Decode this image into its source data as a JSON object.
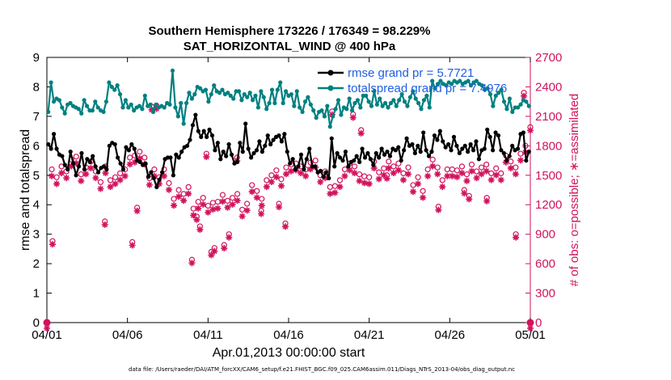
{
  "chart_data": {
    "type": "line",
    "title_line1": "Southern Hemisphere 173226 / 176349 = 98.229%",
    "title_line2": "SAT_HORIZONTAL_WIND @ 400 hPa",
    "xlabel": "Apr.01,2013 00:00:00 start",
    "ylabel_left": "rmse and totalspread",
    "ylabel_right": "# of obs: o=possible; ∗=assimilated",
    "footer": "data file: /Users/raeder/DAI/ATM_forcXX/CAM6_setup/f.e21.FHIST_BGC.f09_025.CAM6assim.011/Diags_NTrS_2013-04/obs_diag_output.nc",
    "x_range": [
      0,
      30
    ],
    "x_ticks": [
      0,
      5,
      10,
      15,
      20,
      25,
      30
    ],
    "x_tick_labels": [
      "04/01",
      "04/06",
      "04/11",
      "04/16",
      "04/21",
      "04/26",
      "05/01"
    ],
    "ylim_left": [
      0,
      9
    ],
    "y_ticks_left": [
      "0",
      "1",
      "2",
      "3",
      "4",
      "5",
      "6",
      "7",
      "8",
      "9"
    ],
    "ylim_right": [
      0,
      2700
    ],
    "y_ticks_right": [
      "0",
      "300",
      "600",
      "900",
      "1200",
      "1500",
      "1800",
      "2100",
      "2400",
      "2700"
    ],
    "legend": [
      {
        "name": "rmse grand pr = 5.7721",
        "color": "#000000"
      },
      {
        "name": "totalspread grand pr = 7.4976",
        "color": "#008080"
      }
    ],
    "colors": {
      "rmse": "#000000",
      "spread": "#008080",
      "obs": "#d1135c",
      "legend_text": "#1f5fe0"
    },
    "series": [
      {
        "name": "rmse",
        "values": [
          6.05,
          5.9,
          6.4,
          5.9,
          5.7,
          5.65,
          5.35,
          5.2,
          5.8,
          5.4,
          5.0,
          5.3,
          5.75,
          5.2,
          5.55,
          5.45,
          5.65,
          5.3,
          5.1,
          5.25,
          5.3,
          5.2,
          6.0,
          6.1,
          6.05,
          5.6,
          5.4,
          5.2,
          5.95,
          5.85,
          6.05,
          5.9,
          5.5,
          5.45,
          5.35,
          5.4,
          4.95,
          5.1,
          4.9,
          4.6,
          4.85,
          5.1,
          5.55,
          5.6,
          5.6,
          5.0,
          5.7,
          5.6,
          5.8,
          5.95,
          6.0,
          6.2,
          6.7,
          7.05,
          6.5,
          6.3,
          6.5,
          6.3,
          6.55,
          6.35,
          5.85,
          6.1,
          5.55,
          5.8,
          5.65,
          6.05,
          5.7,
          5.4,
          5.45,
          6.1,
          5.8,
          6.75,
          5.9,
          5.6,
          5.75,
          5.85,
          6.15,
          5.8,
          6.0,
          6.35,
          6.05,
          6.2,
          6.3,
          6.35,
          6.15,
          6.4,
          5.8,
          5.4,
          5.55,
          5.2,
          5.3,
          5.7,
          5.2,
          5.55,
          5.9,
          5.3,
          5.3,
          5.1,
          5.15,
          4.95,
          5.1,
          4.9,
          6.25,
          5.3,
          5.75,
          5.6,
          5.5,
          5.8,
          5.3,
          5.45,
          5.5,
          5.65,
          5.45,
          5.9,
          5.6,
          5.75,
          5.55,
          5.35,
          5.75,
          5.6,
          5.9,
          5.7,
          5.8,
          5.65,
          5.9,
          5.85,
          5.95,
          5.5,
          5.85,
          6.25,
          6.0,
          6.05,
          5.75,
          6.0,
          5.8,
          6.45,
          5.85,
          5.65,
          5.8,
          6.35,
          6.2,
          6.5,
          6.15,
          5.95,
          6.05,
          5.85,
          6.3,
          6.0,
          5.75,
          5.9,
          6.0,
          5.8,
          6.05,
          5.85,
          6.15,
          5.55,
          5.85,
          5.9,
          6.55,
          6.3,
          5.85,
          6.45,
          6.35,
          5.85,
          5.75,
          5.5,
          5.65,
          6.0,
          5.85,
          5.9,
          6.4,
          6.45,
          5.5,
          5.8
        ]
      },
      {
        "name": "totalspread",
        "values": [
          7.15,
          8.15,
          7.5,
          7.6,
          7.55,
          7.3,
          7.1,
          7.4,
          7.45,
          7.35,
          7.3,
          7.25,
          7.1,
          7.55,
          7.35,
          7.2,
          7.2,
          7.5,
          7.3,
          7.2,
          7.15,
          7.5,
          8.15,
          8.0,
          7.9,
          8.05,
          7.75,
          7.3,
          7.55,
          7.3,
          7.4,
          7.2,
          7.3,
          7.35,
          7.25,
          7.7,
          7.35,
          7.4,
          7.15,
          7.4,
          7.3,
          7.35,
          7.3,
          7.45,
          7.4,
          8.55,
          7.3,
          7.0,
          7.45,
          6.75,
          7.45,
          7.8,
          7.6,
          7.75,
          8.0,
          7.95,
          7.85,
          7.9,
          7.5,
          7.75,
          8.05,
          7.85,
          7.8,
          7.9,
          7.75,
          7.8,
          7.7,
          7.6,
          7.85,
          7.85,
          7.55,
          7.75,
          7.65,
          7.8,
          7.55,
          7.7,
          7.3,
          7.85,
          7.65,
          7.25,
          7.45,
          7.9,
          7.45,
          7.9,
          8.15,
          7.45,
          7.85,
          7.7,
          7.75,
          7.35,
          7.85,
          7.3,
          7.15,
          7.5,
          7.65,
          7.4,
          7.2,
          6.95,
          7.15,
          7.2,
          7.0,
          7.35,
          6.65,
          7.0,
          7.25,
          7.55,
          7.05,
          7.3,
          7.25,
          7.6,
          7.2,
          7.45,
          7.55,
          7.3,
          7.7,
          7.7,
          7.5,
          7.35,
          7.85,
          7.4,
          7.6,
          7.35,
          7.45,
          7.3,
          7.45,
          7.55,
          7.35,
          7.55,
          7.75,
          7.5,
          7.35,
          7.65,
          7.85,
          7.6,
          7.45,
          7.25,
          7.55,
          7.7,
          7.3,
          8.2,
          7.95,
          8.1,
          8.2,
          8.1,
          8.05,
          8.15,
          8.1,
          8.2,
          8.15,
          8.2,
          8.1,
          8.15,
          8.2,
          8.05,
          8.15,
          8.2,
          8.1,
          8.05,
          7.9,
          7.95,
          7.75,
          7.35,
          7.7,
          7.8,
          7.9,
          7.5,
          7.25,
          7.6,
          7.15,
          7.3,
          7.3,
          7.4,
          7.55,
          7.5,
          7.35
        ]
      }
    ],
    "obs_possible": [
      0,
      1560,
      1480,
      1590,
      1540,
      1660,
      1690,
      1510,
      1580,
      1640,
      1540,
      1430,
      1590,
      1450,
      1480,
      1520,
      1560,
      1680,
      1700,
      1740,
      1680,
      1470,
      1560,
      1480,
      1560,
      1420,
      1260,
      1350,
      1310,
      1380,
      1160,
      1230,
      1270,
      1190,
      1220,
      1230,
      1300,
      1240,
      1270,
      1310,
      1150,
      1210,
      1400,
      1340,
      1260,
      1450,
      1500,
      1550,
      1460,
      1580,
      1610,
      1620,
      1590,
      1560,
      1630,
      1650,
      1500,
      1540,
      1380,
      1390,
      1450,
      1560,
      1620,
      1590,
      1510,
      1490,
      1480,
      1640,
      1530,
      1570,
      1640,
      1590,
      1620,
      1520,
      1580,
      1400,
      1480,
      1340,
      1560,
      1660,
      1580,
      1450,
      1560,
      1560,
      1550,
      1590,
      1510,
      1610,
      1540,
      1580,
      1610,
      1520,
      1570,
      1520,
      1700,
      1640,
      1580,
      1720,
      1800,
      0
    ],
    "obs_assimilated": [
      0,
      1550,
      1470,
      1580,
      1530,
      1650,
      1680,
      1500,
      1570,
      1630,
      1530,
      1420,
      1580,
      1440,
      1470,
      1510,
      1550,
      1670,
      1690,
      1730,
      1670,
      1460,
      1550,
      1470,
      1550,
      1410,
      1250,
      1340,
      1300,
      1370,
      1150,
      1220,
      1260,
      1180,
      1210,
      1220,
      1290,
      1230,
      1260,
      1300,
      1140,
      1200,
      1390,
      1330,
      1250,
      1440,
      1490,
      1540,
      1450,
      1570,
      1600,
      1610,
      1580,
      1550,
      1620,
      1640,
      1490,
      1530,
      1370,
      1380,
      1440,
      1550,
      1610,
      1580,
      1500,
      1480,
      1470,
      1630,
      1520,
      1560,
      1630,
      1580,
      1610,
      1510,
      1570,
      1390,
      1470,
      1330,
      1550,
      1650,
      1570,
      1440,
      1550,
      1550,
      1540,
      1580,
      1500,
      1600,
      1530,
      1570,
      1600,
      1510,
      1560,
      1510,
      1690,
      1630,
      1570,
      1710,
      1790,
      0
    ],
    "obs_low_points": [
      {
        "day": 0.35,
        "count": 830
      },
      {
        "day": 3.6,
        "count": 1030
      },
      {
        "day": 5.3,
        "count": 820
      },
      {
        "day": 5.6,
        "count": 1170
      },
      {
        "day": 6.5,
        "count": 2200
      },
      {
        "day": 6.8,
        "count": 2210
      },
      {
        "day": 9.0,
        "count": 640
      },
      {
        "day": 9.3,
        "count": 1080
      },
      {
        "day": 9.5,
        "count": 980
      },
      {
        "day": 9.9,
        "count": 1720
      },
      {
        "day": 10.2,
        "count": 720
      },
      {
        "day": 10.4,
        "count": 760
      },
      {
        "day": 11.0,
        "count": 790
      },
      {
        "day": 11.3,
        "count": 900
      },
      {
        "day": 11.8,
        "count": 1680
      },
      {
        "day": 13.3,
        "count": 1140
      },
      {
        "day": 14.4,
        "count": 1210
      },
      {
        "day": 14.8,
        "count": 1010
      },
      {
        "day": 17.7,
        "count": 2150
      },
      {
        "day": 19.0,
        "count": 2120
      },
      {
        "day": 19.5,
        "count": 1960
      },
      {
        "day": 21.1,
        "count": 1500
      },
      {
        "day": 24.3,
        "count": 1180
      },
      {
        "day": 25.9,
        "count": 1350
      },
      {
        "day": 26.2,
        "count": 1290
      },
      {
        "day": 27.3,
        "count": 1270
      },
      {
        "day": 29.1,
        "count": 900
      },
      {
        "day": 29.6,
        "count": 2340
      },
      {
        "day": 30.0,
        "count": 1990
      }
    ]
  }
}
